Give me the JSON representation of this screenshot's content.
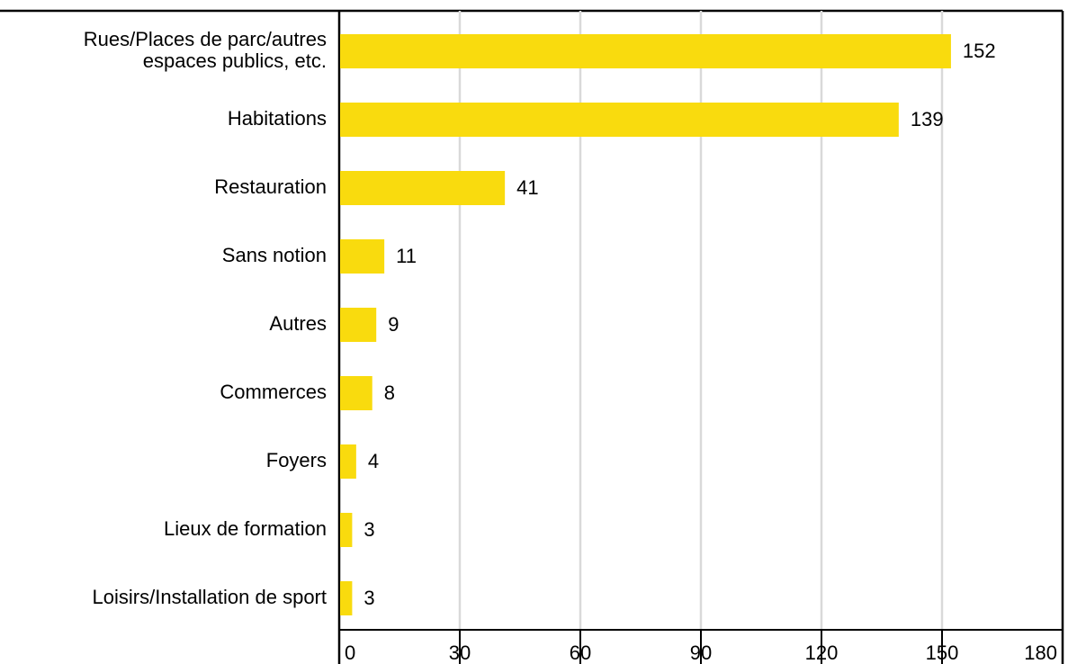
{
  "chart_data": {
    "type": "bar",
    "orientation": "horizontal",
    "categories": [
      "Rues/Places de parc/autres\nespaces publics, etc.",
      "Habitations",
      "Restauration",
      "Sans notion",
      "Autres",
      "Commerces",
      "Foyers",
      "Lieux de formation",
      "Loisirs/Installation de sport"
    ],
    "values": [
      152,
      139,
      41,
      11,
      9,
      8,
      4,
      3,
      3
    ],
    "color": "#f9db0e",
    "xlim": [
      0,
      180
    ],
    "xticks": [
      0,
      30,
      60,
      90,
      120,
      150,
      180
    ],
    "grid": true
  }
}
